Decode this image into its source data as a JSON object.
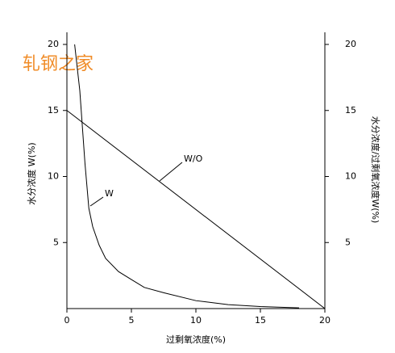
{
  "chart_data": {
    "type": "line",
    "watermark": "轧钢之家",
    "x_label": "过剩氧浓度(%)",
    "y_label": "水分浓度 W(%)",
    "y2_label": "水分浓度/过剩氧浓度W(%)",
    "xlim": [
      0,
      20
    ],
    "xticks": [
      0,
      5,
      10,
      15,
      20
    ],
    "ylim": [
      0,
      20
    ],
    "yticks": [
      5,
      10,
      15,
      20
    ],
    "y2lim": [
      0,
      20
    ],
    "y2ticks": [
      5,
      10,
      15,
      20
    ],
    "series": [
      {
        "name": "W",
        "color": "#000000",
        "x": [
          0.6,
          1,
          1.4,
          1.7,
          2,
          2.5,
          3,
          4,
          5,
          6,
          7.5,
          10,
          12.5,
          15,
          18
        ],
        "values": [
          20,
          16.5,
          11,
          7.6,
          6.2,
          4.8,
          3.8,
          2.8,
          2.2,
          1.6,
          1.2,
          0.6,
          0.3,
          0.15,
          0.05
        ]
      },
      {
        "name": "W/O",
        "color": "#000000",
        "axis": "y2",
        "x": [
          0,
          20
        ],
        "values": [
          15,
          0
        ]
      }
    ]
  }
}
